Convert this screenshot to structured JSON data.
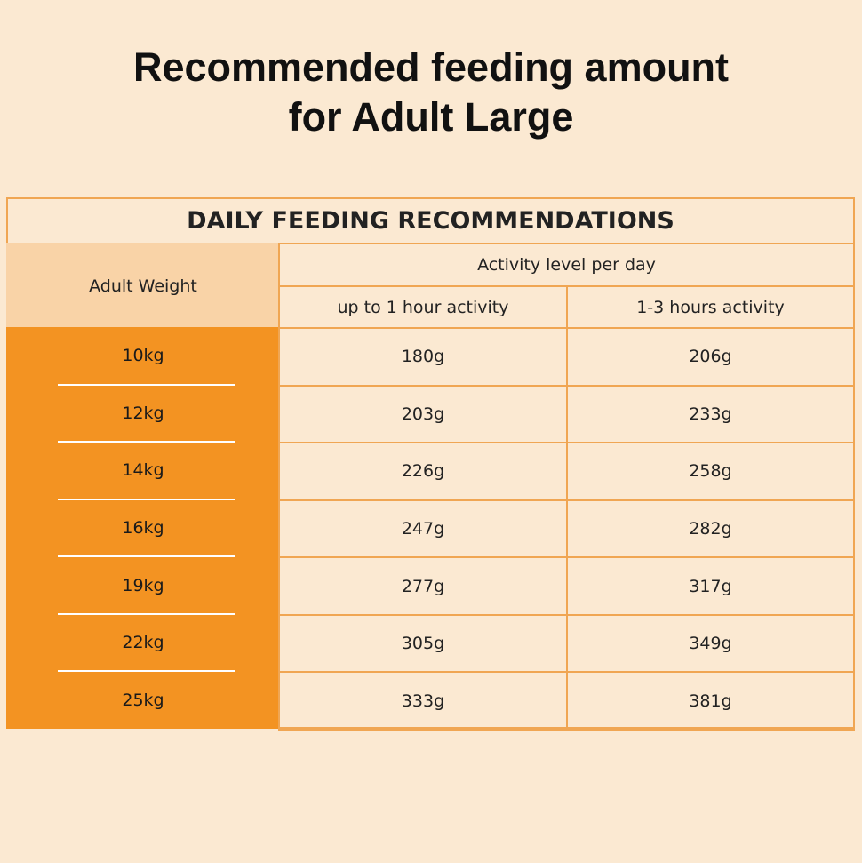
{
  "title": "Recommended feeding amount for Adult Large",
  "table": {
    "title": "DAILY FEEDING RECOMMENDATIONS",
    "row_header": "Adult Weight",
    "group_header": "Activity level per day",
    "columns": [
      "up to 1 hour activity",
      "1-3 hours activity"
    ],
    "rows": [
      [
        "10kg",
        "180g",
        "206g"
      ],
      [
        "12kg",
        "203g",
        "233g"
      ],
      [
        "14kg",
        "226g",
        "258g"
      ],
      [
        "16kg",
        "247g",
        "282g"
      ],
      [
        "19kg",
        "277g",
        "317g"
      ],
      [
        "22kg",
        "305g",
        "349g"
      ],
      [
        "25kg",
        "333g",
        "381g"
      ]
    ]
  }
}
